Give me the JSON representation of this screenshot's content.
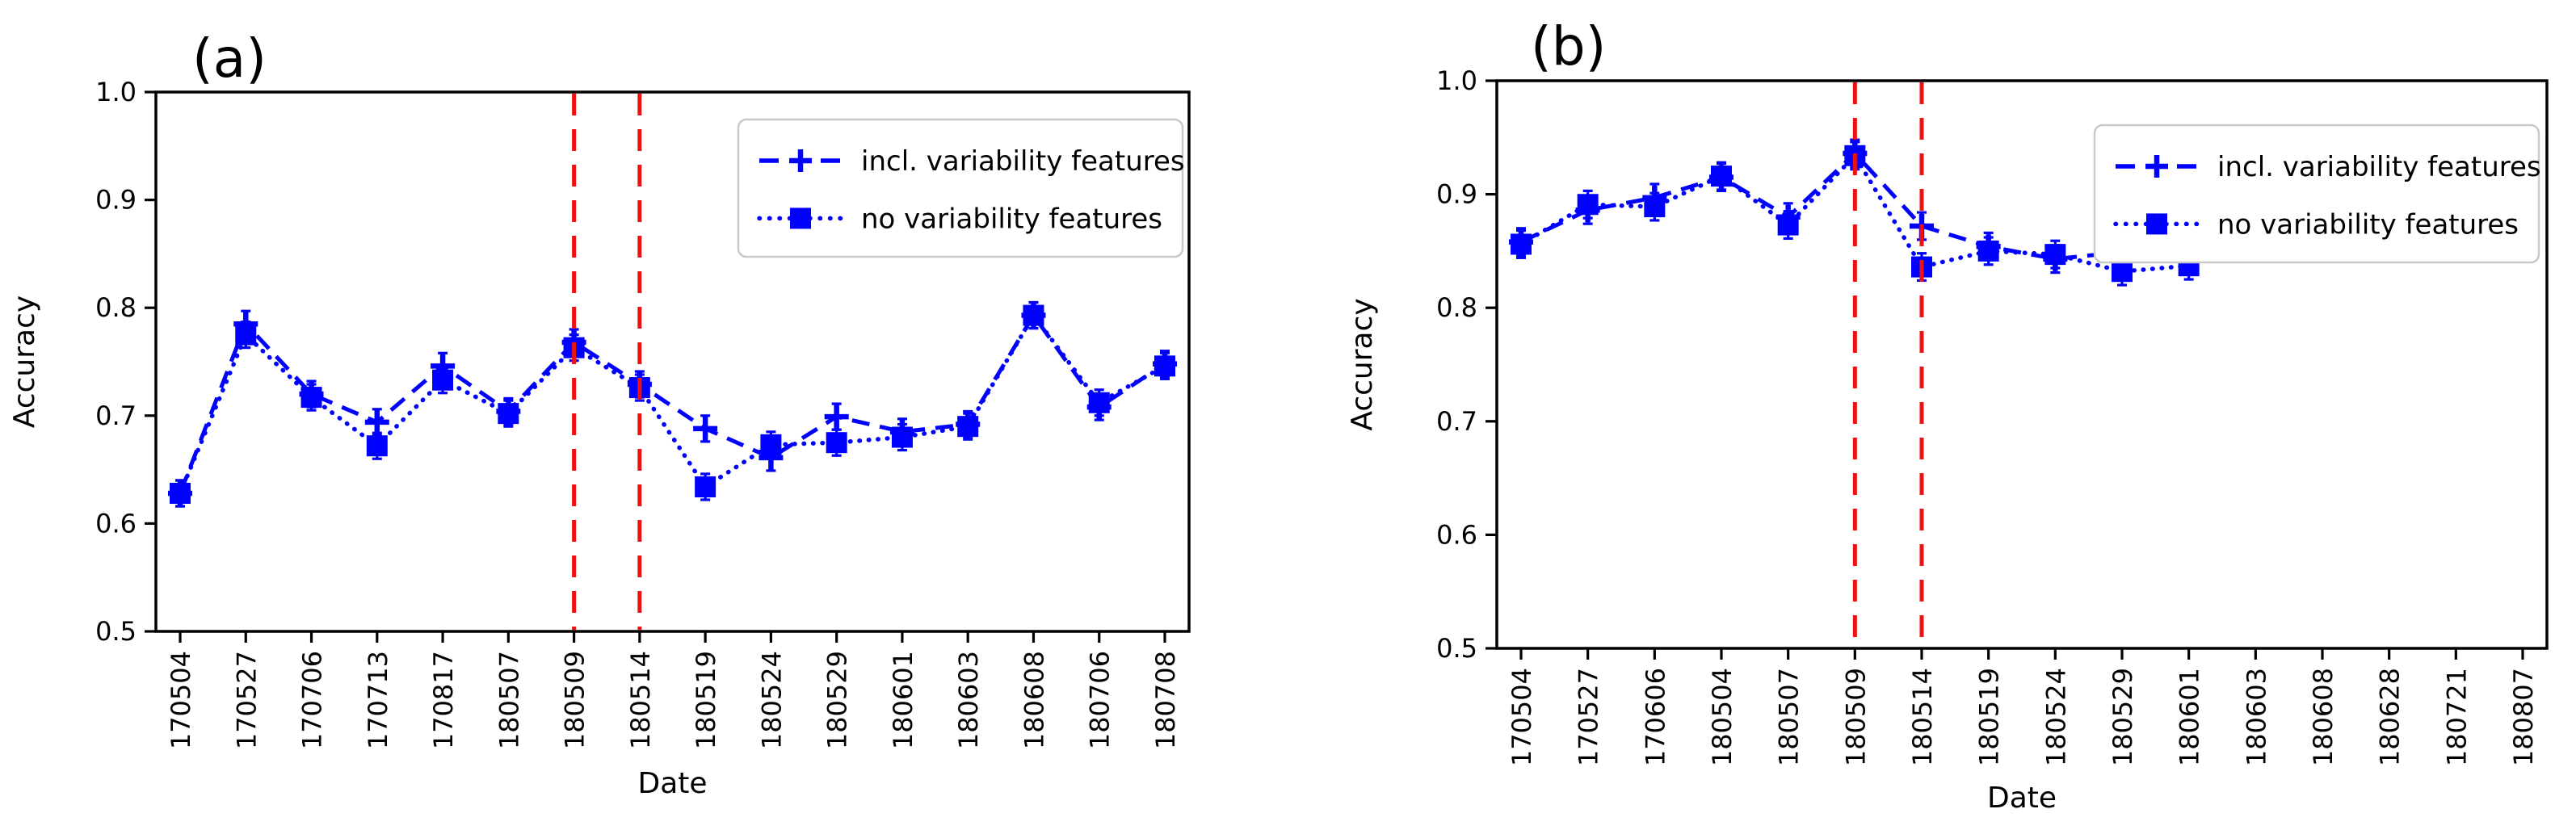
{
  "figure": {
    "background": "#ffffff",
    "axis_color": "#000000",
    "series_color": "#0000ff",
    "vline_color": "#ee1111",
    "legend_border_color": "#c9c9c9"
  },
  "chart_data": [
    {
      "type": "line",
      "panel_label": "(a)",
      "xlabel": "Date",
      "ylabel": "Accuracy",
      "ylim": [
        0.5,
        1.0
      ],
      "yticks": [
        "1.0",
        "0.9",
        "0.8",
        "0.7",
        "0.6",
        "0.5"
      ],
      "ytick_values": [
        1.0,
        0.9,
        0.8,
        0.7,
        0.6,
        0.5
      ],
      "grid": false,
      "legend_position": "upper right",
      "categories": [
        "170504",
        "170527",
        "170706",
        "170713",
        "170817",
        "180507",
        "180509",
        "180514",
        "180519",
        "180524",
        "180529",
        "180601",
        "180603",
        "180608",
        "180706",
        "180708"
      ],
      "series": [
        {
          "name": "incl. variability features",
          "style": "dashed-plus",
          "yerr": 0.012,
          "values": [
            0.628,
            0.785,
            0.72,
            0.694,
            0.746,
            0.704,
            0.768,
            0.729,
            0.688,
            0.661,
            0.699,
            0.685,
            0.692,
            0.793,
            0.708,
            0.748
          ]
        },
        {
          "name": "no variability features",
          "style": "dotted-square",
          "yerr": 0.012,
          "values": [
            0.628,
            0.775,
            0.717,
            0.672,
            0.733,
            0.702,
            0.763,
            0.726,
            0.634,
            0.673,
            0.675,
            0.68,
            0.69,
            0.793,
            0.712,
            0.746
          ]
        }
      ],
      "vlines": [
        "180509",
        "180514"
      ]
    },
    {
      "type": "line",
      "panel_label": "(b)",
      "xlabel": "Date",
      "ylabel": "Accuracy",
      "ylim": [
        0.5,
        1.0
      ],
      "yticks": [
        "1.0",
        "0.9",
        "0.8",
        "0.7",
        "0.6",
        "0.5"
      ],
      "ytick_values": [
        1.0,
        0.9,
        0.8,
        0.7,
        0.6,
        0.5
      ],
      "grid": false,
      "legend_position": "upper right",
      "categories": [
        "170504",
        "170527",
        "170606",
        "180504",
        "180507",
        "180509",
        "180514",
        "180519",
        "180524",
        "180529",
        "180601",
        "180603",
        "180608",
        "180628",
        "180721",
        "180807"
      ],
      "series": [
        {
          "name": "incl. variability features",
          "style": "dashed-plus",
          "yerr": 0.012,
          "values": [
            0.858,
            0.886,
            0.897,
            0.915,
            0.88,
            0.936,
            0.872,
            0.854,
            0.843,
            0.849,
            0.842,
            0.892,
            0.878,
            0.87,
            0.875,
            0.877
          ]
        },
        {
          "name": "no variability features",
          "style": "dotted-square",
          "yerr": 0.012,
          "values": [
            0.856,
            0.891,
            0.889,
            0.916,
            0.873,
            0.934,
            0.836,
            0.85,
            0.847,
            0.832,
            0.837,
            0.887,
            0.867,
            0.863,
            0.874,
            0.873
          ]
        }
      ],
      "vlines": [
        "180509",
        "180514"
      ]
    }
  ]
}
